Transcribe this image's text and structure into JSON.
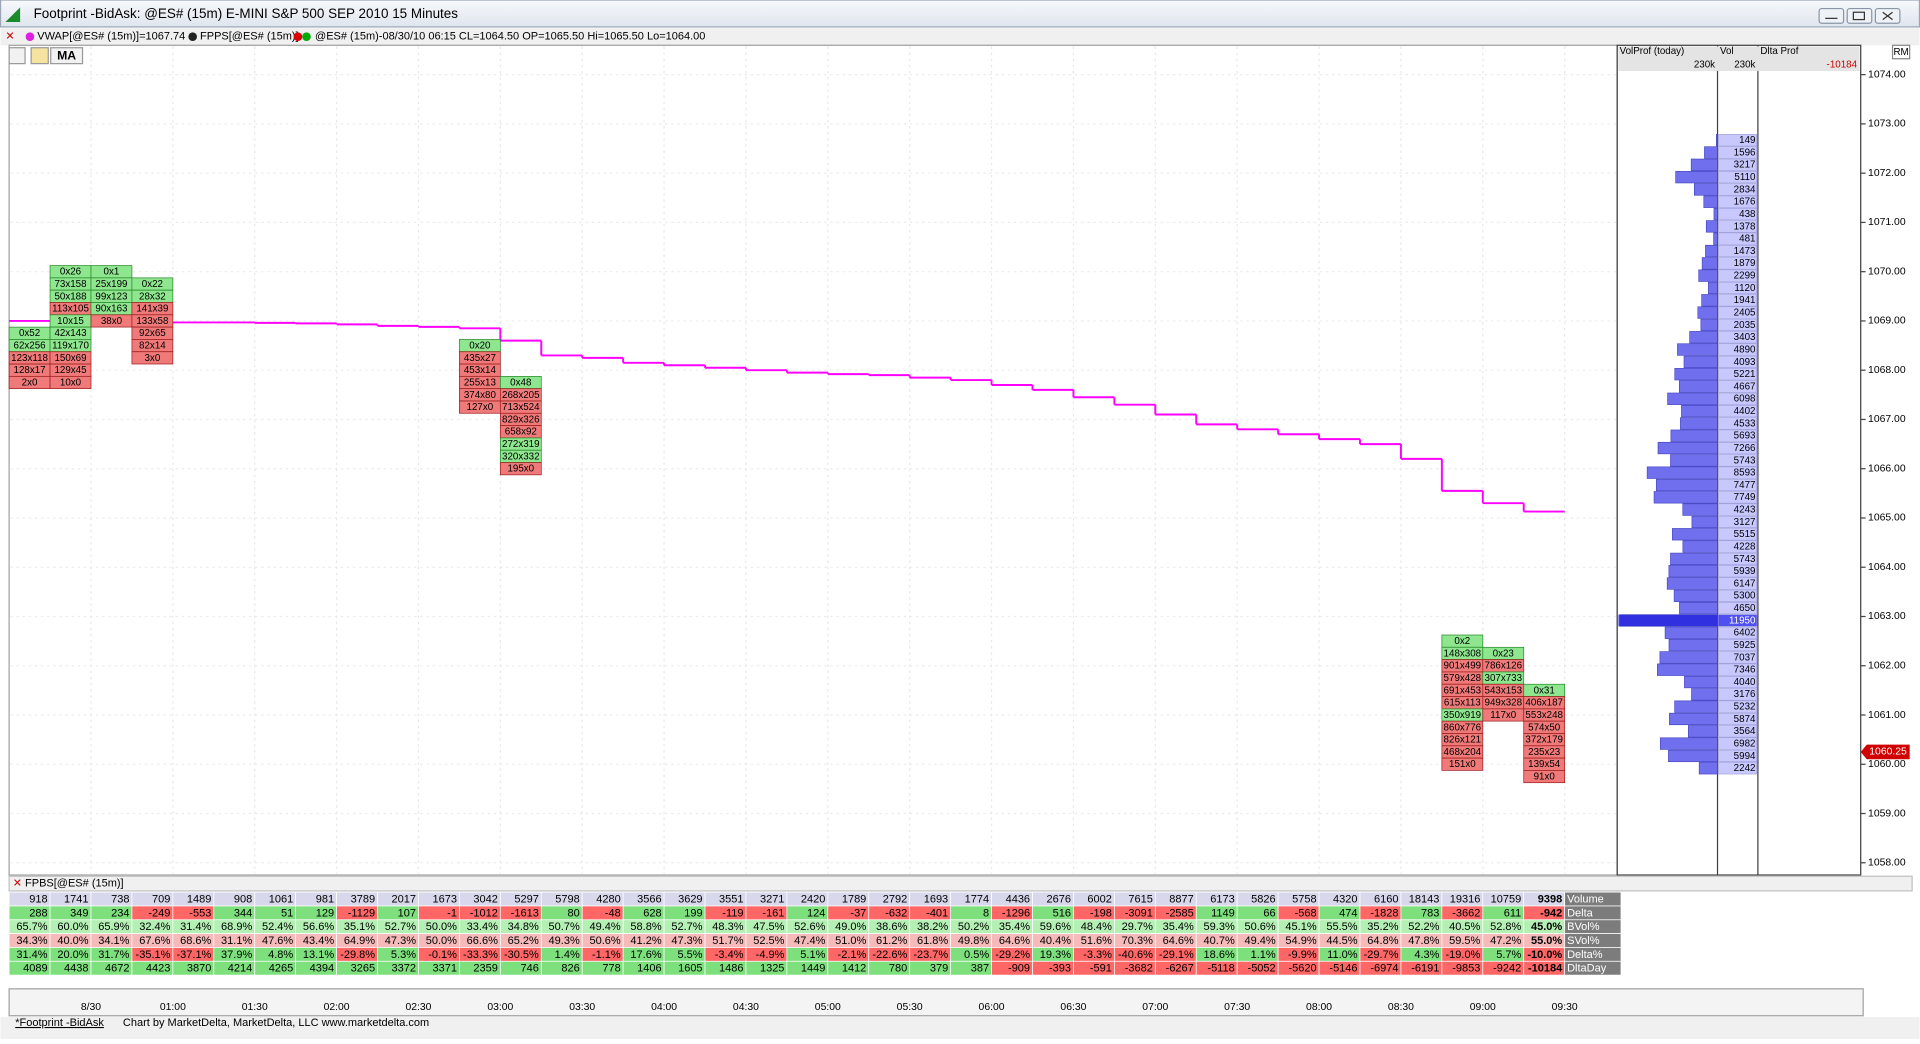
{
  "window": {
    "title": "Footprint  -BidAsk: @ES# (15m) E-MINI S&P 500 SEP 2010 15 Minutes",
    "indicators": [
      "VWAP[@ES# (15m)]=1067.74",
      "FPPS[@ES# (15m)]",
      "@ES# (15m)-08/30/10 06:15 CL=1064.50 OP=1065.50 Hi=1065.50 Lo=1064.00"
    ],
    "toolbar_button": "MA"
  },
  "price_axis": {
    "ticks": [
      {
        "value": 1074,
        "label": "1074.00"
      },
      {
        "value": 1073,
        "label": "1073.00"
      },
      {
        "value": 1072,
        "label": "1072.00"
      },
      {
        "value": 1071,
        "label": "1071.00"
      },
      {
        "value": 1070,
        "label": "1070.00"
      },
      {
        "value": 1069,
        "label": "1069.00"
      },
      {
        "value": 1068,
        "label": "1068.00"
      },
      {
        "value": 1067,
        "label": "1067.00"
      },
      {
        "value": 1066,
        "label": "1066.00"
      },
      {
        "value": 1065,
        "label": "1065.00"
      },
      {
        "value": 1064,
        "label": "1064.00"
      },
      {
        "value": 1063,
        "label": "1063.00"
      },
      {
        "value": 1062,
        "label": "1062.00"
      },
      {
        "value": 1061,
        "label": "1061.00"
      },
      {
        "value": 1060,
        "label": "1060.00"
      },
      {
        "value": 1059,
        "label": "1059.00"
      },
      {
        "value": 1058,
        "label": "1058.00"
      }
    ],
    "current_price": 1060.25
  },
  "time_axis": {
    "labels": [
      "8/30",
      "01:00",
      "01:30",
      "02:00",
      "02:30",
      "03:00",
      "03:30",
      "04:00",
      "04:30",
      "05:00",
      "05:30",
      "06:00",
      "06:30",
      "07:00",
      "07:30",
      "08:00",
      "08:30",
      "09:00",
      "09:30"
    ]
  },
  "profile": {
    "headers": [
      "VolProf (today)",
      "Vol",
      "Dlta Prof"
    ],
    "totals": [
      "230k",
      "230k",
      "-10184"
    ],
    "top_price": 1072.75,
    "tick": 0.25,
    "volumes": [
      149,
      1596,
      3217,
      5110,
      2834,
      1676,
      438,
      1378,
      481,
      1473,
      1879,
      2299,
      1120,
      1941,
      2405,
      2035,
      3403,
      4890,
      4093,
      5221,
      4667,
      6098,
      4402,
      4533,
      5693,
      7266,
      5743,
      8593,
      7477,
      7749,
      4243,
      3127,
      5515,
      4228,
      5743,
      5939,
      6147,
      5300,
      4650,
      11950,
      6402,
      5925,
      7037,
      7346,
      4040,
      3176,
      5232,
      5874,
      3564,
      6982,
      5994,
      2242
    ]
  },
  "vwap": [
    1069.0,
    1069.0,
    1069.0,
    1068.98,
    1068.97,
    1068.97,
    1068.96,
    1068.95,
    1068.93,
    1068.9,
    1068.88,
    1068.85,
    1068.6,
    1068.3,
    1068.25,
    1068.15,
    1068.1,
    1068.05,
    1068.0,
    1067.95,
    1067.92,
    1067.9,
    1067.85,
    1067.8,
    1067.7,
    1067.6,
    1067.45,
    1067.3,
    1067.1,
    1066.9,
    1066.8,
    1066.7,
    1066.6,
    1066.5,
    1066.2,
    1065.55,
    1065.3,
    1065.13
  ],
  "footprint": [
    {
      "bar": 0,
      "top_price": 1068.75,
      "cells": [
        "0x52",
        "62x256",
        "123x118",
        "128x17",
        "2x0"
      ]
    },
    {
      "bar": 1,
      "top_price": 1070.0,
      "cells": [
        "0x26",
        "73x158",
        "50x188",
        "113x105",
        "10x15",
        "42x143",
        "119x170",
        "150x69",
        "129x45",
        "10x0"
      ]
    },
    {
      "bar": 2,
      "top_price": 1070.0,
      "cells": [
        "0x1",
        "25x199",
        "99x123",
        "90x163",
        "38x0"
      ]
    },
    {
      "bar": 3,
      "top_price": 1069.75,
      "cells": [
        "0x22",
        "28x32",
        "141x39",
        "133x58",
        "92x65",
        "82x14",
        "3x0"
      ]
    },
    {
      "bar": 11,
      "top_price": 1068.5,
      "cells": [
        "0x20",
        "435x27",
        "453x14",
        "255x13",
        "374x80",
        "127x0"
      ]
    },
    {
      "bar": 12,
      "top_price": 1067.75,
      "cells": [
        "0x48",
        "268x205",
        "713x524",
        "829x326",
        "658x92",
        "272x319",
        "320x332",
        "195x0"
      ]
    },
    {
      "bar": 35,
      "top_price": 1062.5,
      "cells": [
        "0x2",
        "148x308",
        "901x499",
        "579x428",
        "691x453",
        "615x113",
        "350x919",
        "860x776",
        "826x121",
        "468x204",
        "151x0"
      ]
    },
    {
      "bar": 36,
      "top_price": 1062.25,
      "cells": [
        "0x23",
        "786x126",
        "307x733",
        "543x153",
        "949x328",
        "117x0"
      ]
    },
    {
      "bar": 37,
      "top_price": 1061.5,
      "cells": [
        "0x31",
        "406x187",
        "553x248",
        "574x50",
        "372x179",
        "235x23",
        "139x54",
        "91x0"
      ]
    }
  ],
  "lower_panel": {
    "title": "FPBS[@ES# (15m)]",
    "rows": [
      {
        "label": "Volume",
        "cells": [
          918,
          1741,
          738,
          709,
          1489,
          908,
          1061,
          981,
          3789,
          2017,
          1673,
          3042,
          5297,
          5798,
          4280,
          3566,
          3629,
          3551,
          3271,
          2420,
          1789,
          2792,
          1693,
          1774,
          4436,
          2676,
          6002,
          7615,
          8877,
          6173,
          5826,
          5758,
          4320,
          6160,
          18143,
          19316,
          10759,
          9398
        ]
      },
      {
        "label": "Delta",
        "cells": [
          288,
          349,
          234,
          -249,
          -553,
          344,
          51,
          129,
          -1129,
          107,
          -1,
          -1012,
          -1613,
          80,
          -48,
          628,
          199,
          -119,
          -161,
          124,
          -37,
          -632,
          -401,
          8,
          -1296,
          516,
          -198,
          -3091,
          -2585,
          1149,
          66,
          -568,
          474,
          -1828,
          783,
          -3662,
          611,
          -942
        ]
      },
      {
        "label": "BVol%",
        "cells": [
          "65.7%",
          "60.0%",
          "65.9%",
          "32.4%",
          "31.4%",
          "68.9%",
          "52.4%",
          "56.6%",
          "35.1%",
          "52.7%",
          "50.0%",
          "33.4%",
          "34.8%",
          "50.7%",
          "49.4%",
          "58.8%",
          "52.7%",
          "48.3%",
          "47.5%",
          "52.6%",
          "49.0%",
          "38.6%",
          "38.2%",
          "50.2%",
          "35.4%",
          "59.6%",
          "48.4%",
          "29.7%",
          "35.4%",
          "59.3%",
          "50.6%",
          "45.1%",
          "55.5%",
          "35.2%",
          "52.2%",
          "40.5%",
          "52.8%",
          "45.0%"
        ]
      },
      {
        "label": "SVol%",
        "cells": [
          "34.3%",
          "40.0%",
          "34.1%",
          "67.6%",
          "68.6%",
          "31.1%",
          "47.6%",
          "43.4%",
          "64.9%",
          "47.3%",
          "50.0%",
          "66.6%",
          "65.2%",
          "49.3%",
          "50.6%",
          "41.2%",
          "47.3%",
          "51.7%",
          "52.5%",
          "47.4%",
          "51.0%",
          "61.2%",
          "61.8%",
          "49.8%",
          "64.6%",
          "40.4%",
          "51.6%",
          "70.3%",
          "64.6%",
          "40.7%",
          "49.4%",
          "54.9%",
          "44.5%",
          "64.8%",
          "47.8%",
          "59.5%",
          "47.2%",
          "55.0%"
        ]
      },
      {
        "label": "Delta%",
        "cells": [
          "31.4%",
          "20.0%",
          "31.7%",
          "-35.1%",
          "-37.1%",
          "37.9%",
          "4.8%",
          "13.1%",
          "-29.8%",
          "5.3%",
          "-0.1%",
          "-33.3%",
          "-30.5%",
          "1.4%",
          "-1.1%",
          "17.6%",
          "5.5%",
          "-3.4%",
          "-4.9%",
          "5.1%",
          "-2.1%",
          "-22.6%",
          "-23.7%",
          "0.5%",
          "-29.2%",
          "19.3%",
          "-3.3%",
          "-40.6%",
          "-29.1%",
          "18.6%",
          "1.1%",
          "-9.9%",
          "11.0%",
          "-29.7%",
          "4.3%",
          "-19.0%",
          "5.7%",
          "-10.0%"
        ]
      },
      {
        "label": "DltaDay",
        "cells": [
          4089,
          4438,
          4672,
          4423,
          3870,
          4214,
          4265,
          4394,
          3265,
          3372,
          3371,
          2359,
          746,
          826,
          778,
          1406,
          1605,
          1486,
          1325,
          1449,
          1412,
          780,
          379,
          387,
          -909,
          -393,
          -591,
          -3682,
          -6267,
          -5118,
          -5052,
          -5620,
          -5146,
          -6974,
          -6191,
          -9853,
          -9242,
          -10184
        ]
      }
    ]
  },
  "status_bar": {
    "tab": "*Footprint -BidAsk",
    "credit": "Chart by MarketDelta, MarketDelta, LLC www.marketdelta.com"
  }
}
